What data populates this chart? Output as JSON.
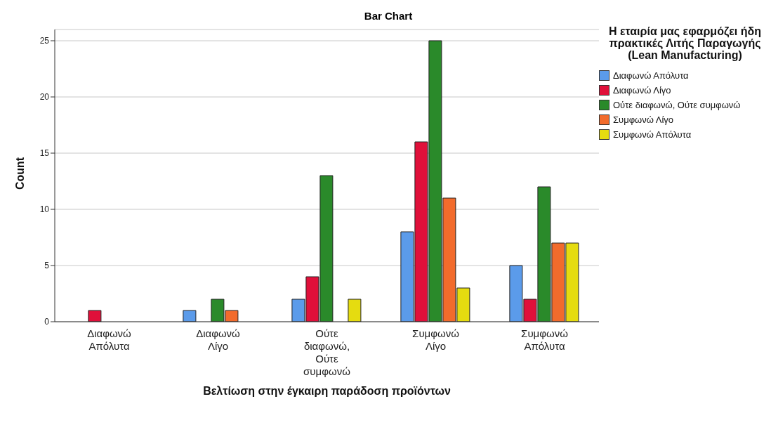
{
  "chart_data": {
    "type": "bar",
    "title": "Bar Chart",
    "xlabel": "Βελτίωση στην έγκαιρη παράδοση προϊόντων",
    "ylabel": "Count",
    "legend_title": "Η εταιρία μας εφαρμόζει ήδη πρακτικές Λιτής Παραγωγής (Lean Manufacturing)",
    "categories": [
      "Διαφωνώ Απόλυτα",
      "Διαφωνώ Λίγο",
      "Ούτε διαφωνώ, Ούτε συμφωνώ",
      "Συμφωνώ Λίγο",
      "Συμφωνώ Απόλυτα"
    ],
    "series": [
      {
        "name": "Διαφωνώ Απόλυτα",
        "color": "#5b9bea",
        "values": [
          null,
          1,
          2,
          8,
          5
        ]
      },
      {
        "name": "Διαφωνώ Λίγο",
        "color": "#e0103a",
        "values": [
          1,
          null,
          4,
          16,
          2
        ]
      },
      {
        "name": "Ούτε διαφωνώ, Ούτε συμφωνώ",
        "color": "#2a8a2a",
        "values": [
          null,
          2,
          13,
          25,
          12
        ]
      },
      {
        "name": "Συμφωνώ Λίγο",
        "color": "#f26b2c",
        "values": [
          null,
          1,
          null,
          11,
          7
        ]
      },
      {
        "name": "Συμφωνώ Απόλυτα",
        "color": "#e5dc10",
        "values": [
          null,
          null,
          2,
          3,
          7
        ]
      }
    ],
    "ylim": [
      0,
      26
    ],
    "yticks": [
      0,
      5,
      10,
      15,
      20,
      25
    ],
    "grid": "y",
    "legend": "top right"
  }
}
